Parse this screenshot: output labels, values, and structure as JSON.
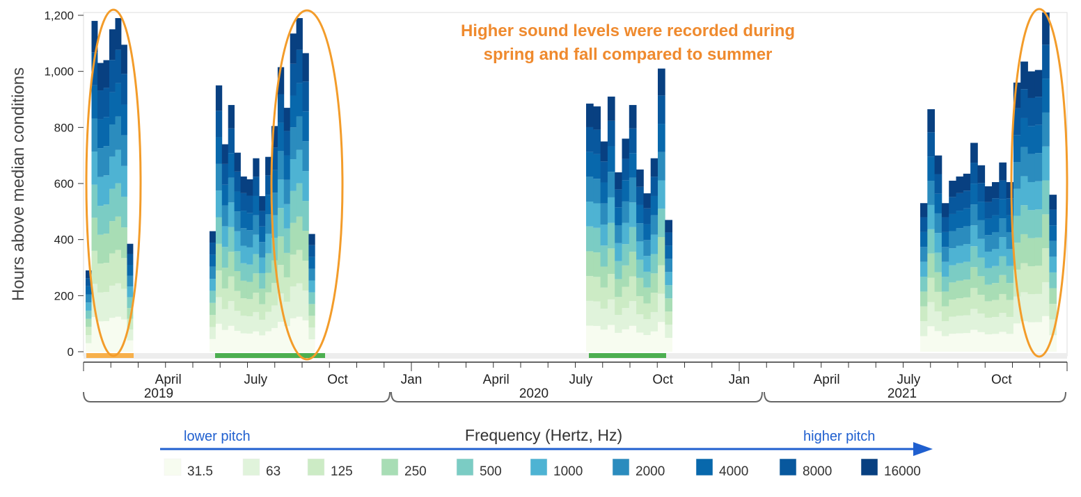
{
  "chart_data": {
    "type": "bar",
    "stacked": true,
    "ylabel": "Hours above median conditions",
    "ylim": [
      0,
      1200
    ],
    "yticks": [
      0,
      200,
      400,
      600,
      800,
      1000,
      1200
    ],
    "ytick_labels": [
      "0",
      "200",
      "400",
      "600",
      "800",
      "1,000",
      "1,200"
    ],
    "grid": false,
    "x_month_labels": [
      "April",
      "July",
      "Oct",
      "Jan",
      "April",
      "July",
      "Oct",
      "Jan",
      "April",
      "July",
      "Oct"
    ],
    "x_year_labels": [
      "2019",
      "2020",
      "2021"
    ],
    "annotation": "Higher sound levels were recorded during spring and fall compared to summer",
    "legend_title": "Frequency (Hertz, Hz)",
    "legend_left_note": "lower pitch",
    "legend_right_note": "higher pitch",
    "legend_placement": "bottom",
    "series_names": [
      "31.5",
      "63",
      "125",
      "250",
      "500",
      "1000",
      "2000",
      "4000",
      "8000",
      "16000"
    ],
    "series_colors": [
      "#f7fcf0",
      "#e0f3db",
      "#ccebc5",
      "#a8ddb5",
      "#7bccc4",
      "#4eb3d3",
      "#2b8cbe",
      "#0868ac",
      "#08589e",
      "#084081"
    ],
    "deployments": [
      {
        "period": "2019 spring",
        "weekly_totals": [
          290,
          1180,
          1030,
          1040,
          1150,
          1190,
          1095,
          385
        ]
      },
      {
        "period": "2019 fall",
        "weekly_totals": [
          430,
          950,
          740,
          880,
          710,
          625,
          615,
          690,
          555,
          695,
          805,
          1015,
          870,
          1135,
          1190,
          1065,
          420
        ]
      },
      {
        "period": "2020 fall",
        "weekly_totals": [
          885,
          875,
          750,
          910,
          640,
          760,
          880,
          650,
          565,
          690,
          1010,
          470
        ]
      },
      {
        "period": "2021 spring to fall",
        "weekly_totals": [
          530,
          865,
          700,
          530,
          610,
          625,
          635,
          745,
          665,
          590,
          605,
          675,
          605,
          960,
          1035,
          1000,
          1005,
          1210,
          560
        ]
      }
    ],
    "highlighted_periods": [
      "2019 spring",
      "2019 fall",
      "2021 fall"
    ],
    "deployment_bar_colors": {
      "orange": "#f7b04b",
      "green": "#4caf50"
    }
  }
}
